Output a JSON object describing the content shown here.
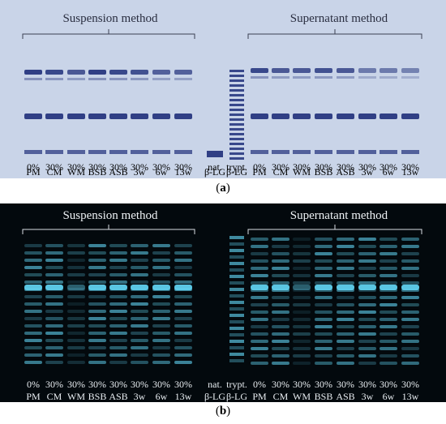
{
  "panel_a": {
    "method_left": "Suspension method",
    "method_right": "Supernatant method",
    "label_open": "(",
    "label_letter": "a",
    "label_close": ")",
    "lanes": [
      {
        "top": "0%",
        "bottom": "PM"
      },
      {
        "top": "30%",
        "bottom": "CM"
      },
      {
        "top": "30%",
        "bottom": "WM"
      },
      {
        "top": "30%",
        "bottom": "BSB"
      },
      {
        "top": "30%",
        "bottom": "ASB"
      },
      {
        "top": "30%",
        "bottom": "3w"
      },
      {
        "top": "30%",
        "bottom": "6w"
      },
      {
        "top": "30%",
        "bottom": "13w"
      },
      {
        "top": "nat.",
        "bottom": "β-LG"
      },
      {
        "top": "trypt.",
        "bottom": "β-LG"
      },
      {
        "top": "0%",
        "bottom": "PM"
      },
      {
        "top": "30%",
        "bottom": "CM"
      },
      {
        "top": "30%",
        "bottom": "WM"
      },
      {
        "top": "30%",
        "bottom": "BSB"
      },
      {
        "top": "30%",
        "bottom": "ASB"
      },
      {
        "top": "30%",
        "bottom": "3w"
      },
      {
        "top": "30%",
        "bottom": "6w"
      },
      {
        "top": "30%",
        "bottom": "13w"
      }
    ],
    "colors": {
      "background": "#c9d4e8",
      "band": "#1f2f7a"
    }
  },
  "panel_b": {
    "method_left": "Suspension method",
    "method_right": "Supernatant method",
    "label_open": "(",
    "label_letter": "b",
    "label_close": ")",
    "lanes": [
      {
        "top": "0%",
        "bottom": "PM"
      },
      {
        "top": "30%",
        "bottom": "CM"
      },
      {
        "top": "30%",
        "bottom": "WM"
      },
      {
        "top": "30%",
        "bottom": "BSB"
      },
      {
        "top": "30%",
        "bottom": "ASB"
      },
      {
        "top": "30%",
        "bottom": "3w"
      },
      {
        "top": "30%",
        "bottom": "6w"
      },
      {
        "top": "30%",
        "bottom": "13w"
      },
      {
        "top": "nat.",
        "bottom": "β-LG"
      },
      {
        "top": "trypt.",
        "bottom": "β-LG"
      },
      {
        "top": "0%",
        "bottom": "PM"
      },
      {
        "top": "30%",
        "bottom": "CM"
      },
      {
        "top": "30%",
        "bottom": "WM"
      },
      {
        "top": "30%",
        "bottom": "BSB"
      },
      {
        "top": "30%",
        "bottom": "ASB"
      },
      {
        "top": "30%",
        "bottom": "3w"
      },
      {
        "top": "30%",
        "bottom": "6w"
      },
      {
        "top": "30%",
        "bottom": "13w"
      }
    ],
    "colors": {
      "background": "#03090d",
      "band": "#5fd0ee"
    }
  }
}
